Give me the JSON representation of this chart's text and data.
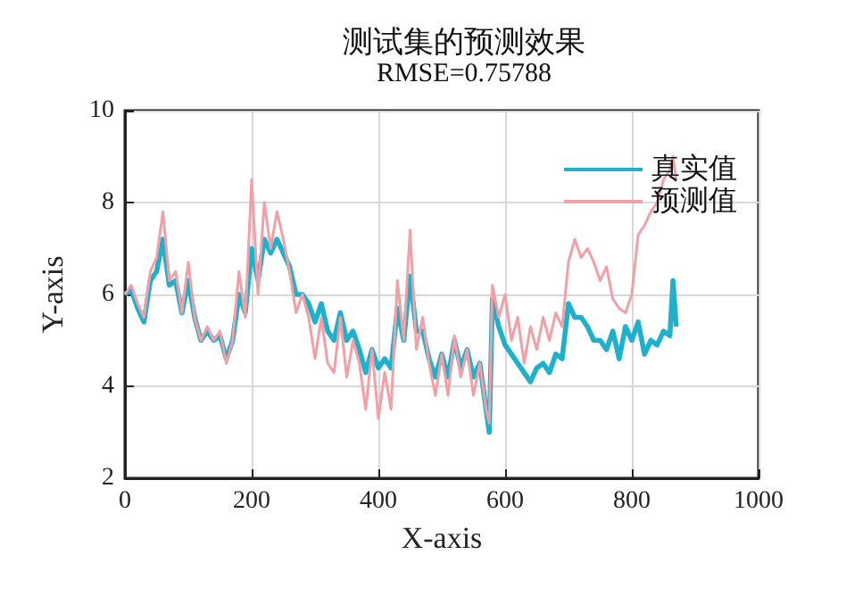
{
  "chart_data": {
    "type": "line",
    "title": "测试集的预测效果",
    "subtitle": "RMSE=0.75788",
    "xlabel": "X-axis",
    "ylabel": "Y-axis",
    "x": [
      0,
      10,
      20,
      30,
      40,
      50,
      60,
      70,
      80,
      90,
      100,
      110,
      120,
      130,
      140,
      150,
      160,
      170,
      180,
      190,
      200,
      210,
      220,
      230,
      240,
      250,
      260,
      270,
      280,
      290,
      300,
      310,
      320,
      330,
      340,
      350,
      360,
      370,
      380,
      390,
      400,
      410,
      420,
      430,
      440,
      450,
      460,
      470,
      480,
      490,
      500,
      510,
      520,
      530,
      540,
      550,
      560,
      570,
      575,
      580,
      590,
      600,
      610,
      620,
      630,
      640,
      650,
      660,
      670,
      680,
      690,
      700,
      710,
      720,
      730,
      740,
      750,
      760,
      770,
      780,
      790,
      800,
      810,
      820,
      830,
      840,
      850,
      860,
      865,
      870
    ],
    "series": [
      {
        "name": "真实值",
        "color": "#1fb0cc",
        "values": [
          6.0,
          6.1,
          5.7,
          5.4,
          6.3,
          6.5,
          7.2,
          6.2,
          6.3,
          5.6,
          6.3,
          5.5,
          5.0,
          5.2,
          5.0,
          5.1,
          4.6,
          5.0,
          6.0,
          5.6,
          7.0,
          6.3,
          7.2,
          6.9,
          7.2,
          6.9,
          6.6,
          6.0,
          6.0,
          5.8,
          5.4,
          5.8,
          5.2,
          5.0,
          5.6,
          5.0,
          5.2,
          4.8,
          4.3,
          4.8,
          4.4,
          4.6,
          4.4,
          5.7,
          5.0,
          6.4,
          5.2,
          5.2,
          4.6,
          4.2,
          4.7,
          4.2,
          5.0,
          4.4,
          4.8,
          4.2,
          4.5,
          3.5,
          3.0,
          5.9,
          5.3,
          4.9,
          4.7,
          4.5,
          4.3,
          4.1,
          4.4,
          4.5,
          4.3,
          4.7,
          4.6,
          5.8,
          5.5,
          5.5,
          5.3,
          5.0,
          5.0,
          4.8,
          5.2,
          4.6,
          5.3,
          5.0,
          5.4,
          4.7,
          5.0,
          4.9,
          5.2,
          5.1,
          6.3,
          5.3
        ]
      },
      {
        "name": "预测值",
        "color": "#f0a0a6",
        "values": [
          6.0,
          6.2,
          5.8,
          5.5,
          6.5,
          6.8,
          7.8,
          6.3,
          6.5,
          5.6,
          6.7,
          5.5,
          5.0,
          5.3,
          5.0,
          5.2,
          4.5,
          5.0,
          6.5,
          5.5,
          8.5,
          6.0,
          8.0,
          7.0,
          7.8,
          7.2,
          6.5,
          5.6,
          6.0,
          5.5,
          4.6,
          5.5,
          4.5,
          4.3,
          5.5,
          4.2,
          5.0,
          4.5,
          3.5,
          4.8,
          3.3,
          4.3,
          3.5,
          6.3,
          5.0,
          7.4,
          4.8,
          5.5,
          4.5,
          3.8,
          4.7,
          3.8,
          5.1,
          4.2,
          4.8,
          3.8,
          4.5,
          3.5,
          3.2,
          6.2,
          5.5,
          6.0,
          5.0,
          5.5,
          4.5,
          5.3,
          4.8,
          5.5,
          5.0,
          5.6,
          5.3,
          6.7,
          7.2,
          6.8,
          7.0,
          6.7,
          6.3,
          6.6,
          5.9,
          5.7,
          5.6,
          6.0,
          7.3,
          7.5,
          7.8,
          8.0,
          8.5,
          8.7,
          9.0,
          8.5
        ]
      }
    ],
    "xlim": [
      0,
      1000
    ],
    "xticks": [
      0,
      200,
      400,
      600,
      800,
      1000
    ],
    "ylim": [
      2,
      10
    ],
    "yticks": [
      2,
      4,
      6,
      8,
      10
    ],
    "grid": true,
    "legend": "top right",
    "marker": "none",
    "line_style": "solid"
  }
}
